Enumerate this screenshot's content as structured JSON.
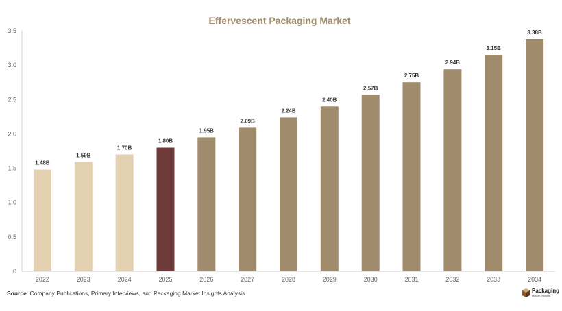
{
  "chart_data": {
    "type": "bar",
    "title": "Effervescent Packaging Market",
    "xlabel": "",
    "ylabel": "",
    "categories": [
      "2022",
      "2023",
      "2024",
      "2025",
      "2026",
      "2027",
      "2028",
      "2029",
      "2030",
      "2031",
      "2032",
      "2033",
      "2034"
    ],
    "values": [
      1.48,
      1.59,
      1.7,
      1.8,
      1.95,
      2.09,
      2.24,
      2.4,
      2.57,
      2.75,
      2.94,
      3.15,
      3.38
    ],
    "value_labels": [
      "1.48B",
      "1.59B",
      "1.70B",
      "1.80B",
      "1.95B",
      "2.09B",
      "2.24B",
      "2.40B",
      "2.57B",
      "2.75B",
      "2.94B",
      "3.15B",
      "3.38B"
    ],
    "ylim": [
      0,
      3.5
    ],
    "yticks": [
      "0",
      "0.5",
      "1.0",
      "1.5",
      "2.0",
      "2.5",
      "3.0",
      "3.5"
    ],
    "grid": false,
    "legend": "none",
    "colors": {
      "historical": "#e3d0b1",
      "current": "#6e3a3a",
      "forecast": "#a08b6c",
      "title": "#a08b6c",
      "axis": "#cccccc"
    },
    "bar_groups": [
      "historical",
      "historical",
      "historical",
      "current",
      "forecast",
      "forecast",
      "forecast",
      "forecast",
      "forecast",
      "forecast",
      "forecast",
      "forecast",
      "forecast"
    ]
  },
  "source": {
    "label": "Source",
    "text": ": Company Publications, Primary Interviews, and Packaging Market Insights Analysis"
  },
  "logo": {
    "name": "Packaging",
    "sub": "Market Insights",
    "icon": "box-icon"
  }
}
